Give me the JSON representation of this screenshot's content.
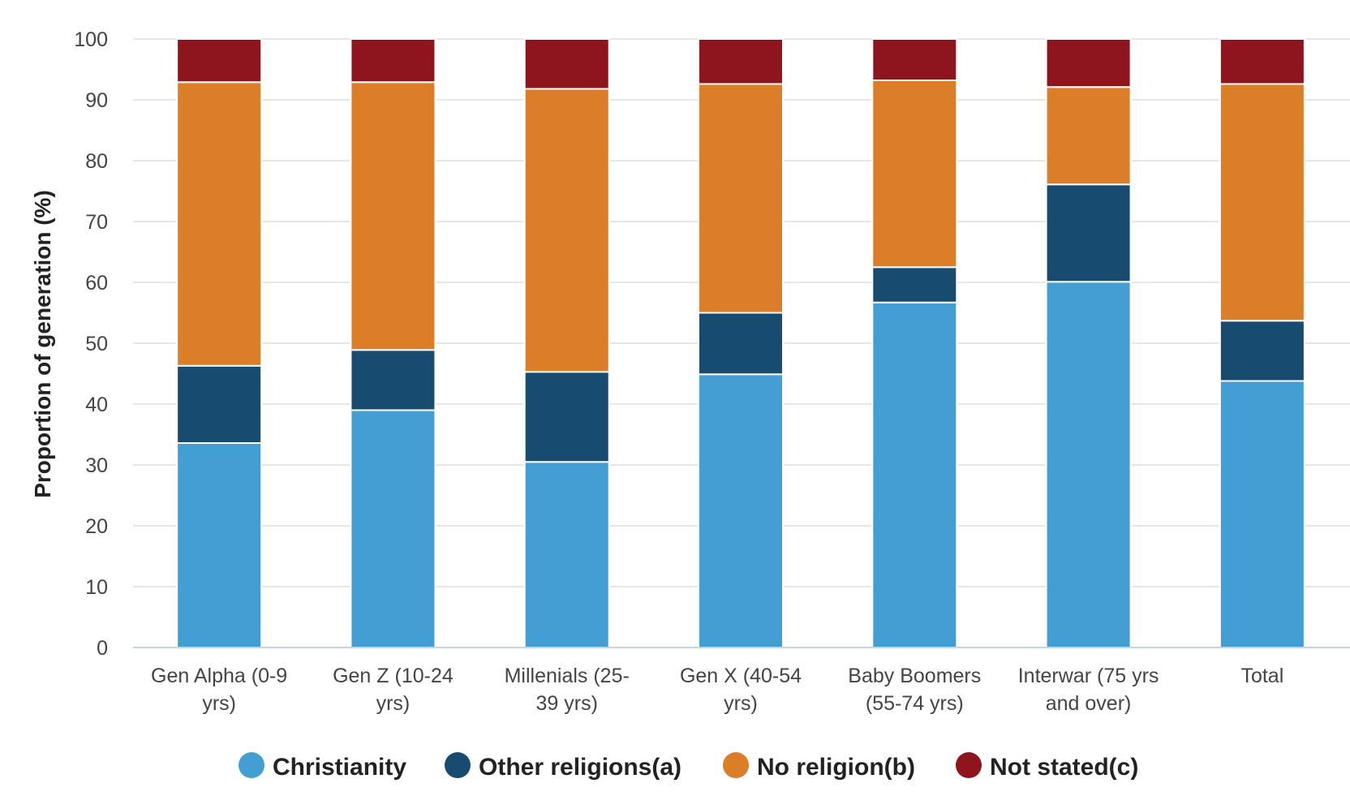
{
  "chart_data": {
    "type": "bar",
    "stacked": true,
    "title": "",
    "xlabel": "",
    "ylabel": "Proportion of generation (%)",
    "ylim": [
      0,
      100
    ],
    "yticks": [
      0,
      10,
      20,
      30,
      40,
      50,
      60,
      70,
      80,
      90,
      100
    ],
    "grid": true,
    "legend_position": "bottom",
    "categories": [
      [
        "Gen Alpha (0-9",
        "yrs)"
      ],
      [
        "Gen Z (10-24",
        "yrs)"
      ],
      [
        "Millenials (25-",
        "39 yrs)"
      ],
      [
        "Gen X (40-54",
        "yrs)"
      ],
      [
        "Baby Boomers",
        "(55-74 yrs)"
      ],
      [
        "Interwar (75 yrs",
        "and over)"
      ],
      [
        "Total"
      ]
    ],
    "series": [
      {
        "name": "Christianity",
        "color": "#439fd3",
        "values": [
          33.6,
          39.0,
          30.5,
          44.9,
          56.7,
          60.1,
          43.8
        ]
      },
      {
        "name": "Other religions(a)",
        "color": "#184b70",
        "values": [
          12.7,
          9.9,
          14.8,
          10.1,
          5.8,
          16.0,
          9.9
        ]
      },
      {
        "name": "No religion(b)",
        "color": "#dc7d28",
        "values": [
          46.6,
          44.0,
          46.5,
          37.6,
          30.7,
          16.0,
          38.9
        ]
      },
      {
        "name": "Not stated(c)",
        "color": "#8e141e",
        "values": [
          7.1,
          7.1,
          8.2,
          7.4,
          6.8,
          7.9,
          7.4
        ]
      }
    ]
  }
}
